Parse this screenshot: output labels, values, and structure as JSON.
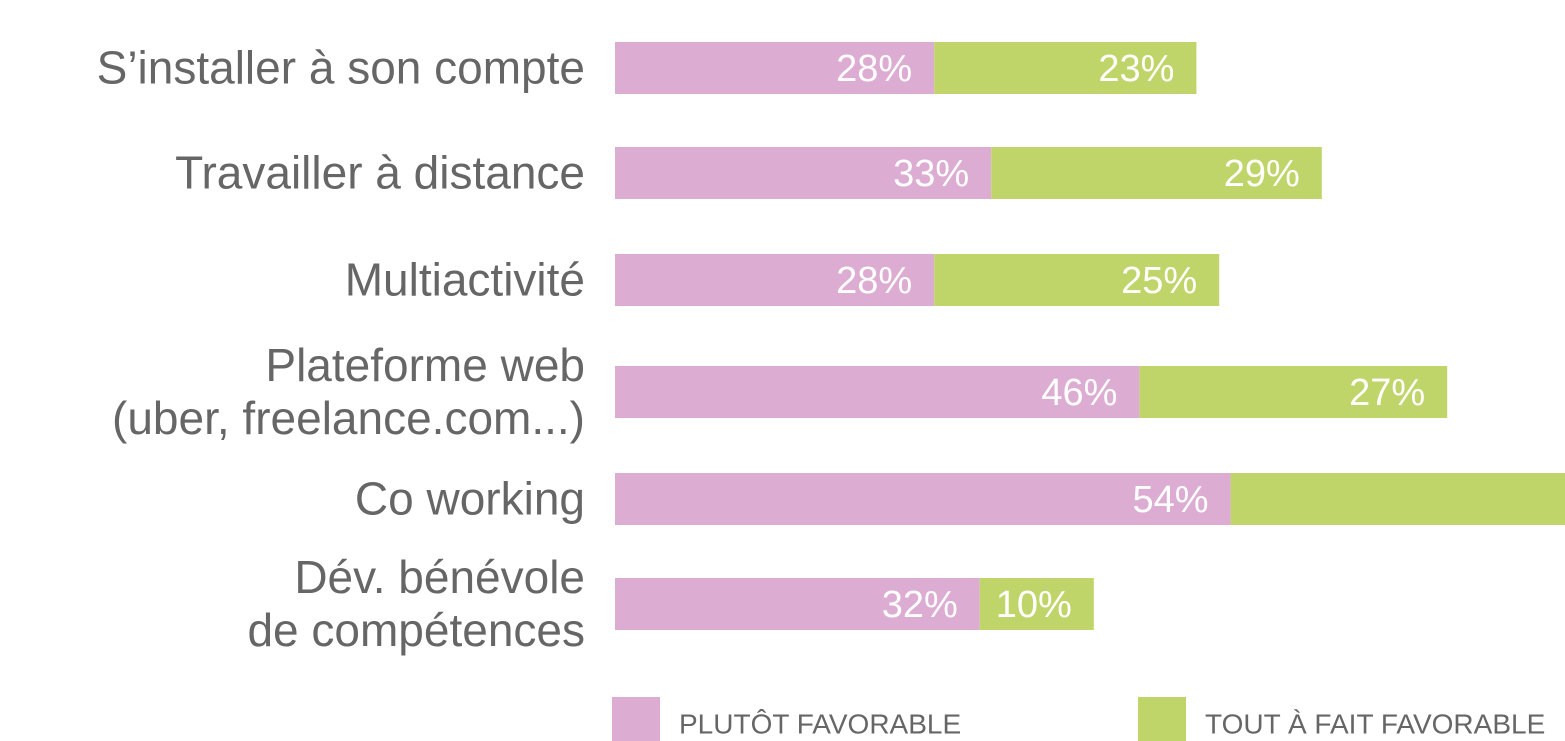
{
  "chart_data": {
    "type": "stacked-bar-horizontal",
    "categories": [
      "S’installer à son compte",
      "Travailler à distance",
      "Multiactivité",
      "Plateforme web\n(uber, freelance.com...)",
      "Co working",
      "Dév. bénévole\nde compétences"
    ],
    "series": [
      {
        "name": "PLUTÔT FAVORABLE",
        "color": "#dcacd2",
        "values": [
          28,
          33,
          28,
          46,
          54,
          32
        ],
        "value_labels": [
          "28%",
          "33%",
          "28%",
          "46%",
          "54%",
          "32%"
        ]
      },
      {
        "name": "TOUT À FAIT FAVORABLE",
        "color": "#bfd56a",
        "values": [
          23,
          29,
          25,
          27,
          30,
          10
        ],
        "value_labels": [
          "23%",
          "29%",
          "25%",
          "27%",
          null,
          "10%"
        ]
      }
    ]
  }
}
